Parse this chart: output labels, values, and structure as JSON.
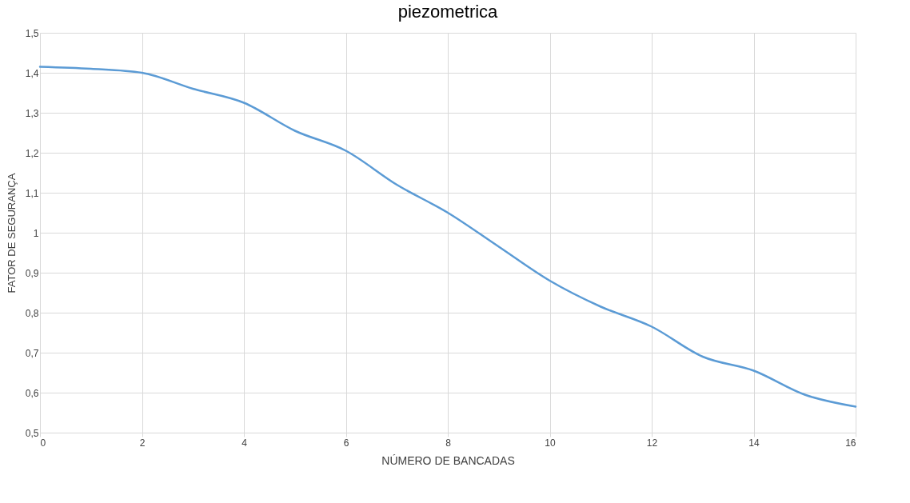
{
  "chart_data": {
    "type": "line",
    "title": "piezometrica",
    "xlabel": "NÚMERO DE BANCADAS",
    "ylabel": "FATOR DE SEGURANÇA",
    "x": [
      0,
      1,
      2,
      3,
      4,
      5,
      6,
      7,
      8,
      9,
      10,
      11,
      12,
      13,
      14,
      15,
      16
    ],
    "series": [
      {
        "color": "#5b9bd5",
        "values": [
          1.415,
          1.41,
          1.4,
          1.36,
          1.325,
          1.255,
          1.205,
          1.12,
          1.05,
          0.965,
          0.88,
          0.815,
          0.765,
          0.69,
          0.655,
          0.595,
          0.565
        ]
      }
    ],
    "xlim": [
      0,
      16
    ],
    "xticks": [
      0,
      2,
      4,
      6,
      8,
      10,
      12,
      14,
      16
    ],
    "ylim": [
      0.5,
      1.5
    ],
    "yticks": [
      {
        "value": 0.5,
        "label": "0,5"
      },
      {
        "value": 0.6,
        "label": "0,6"
      },
      {
        "value": 0.7,
        "label": "0,7"
      },
      {
        "value": 0.8,
        "label": "0,8"
      },
      {
        "value": 0.9,
        "label": "0,9"
      },
      {
        "value": 1,
        "label": "1"
      },
      {
        "value": 1.1,
        "label": "1,1"
      },
      {
        "value": 1.2,
        "label": "1,2"
      },
      {
        "value": 1.3,
        "label": "1,3"
      },
      {
        "value": 1.4,
        "label": "1,4"
      },
      {
        "value": 1.5,
        "label": "1,5"
      }
    ],
    "grid": true,
    "marker": "none",
    "line_style": "solid"
  }
}
